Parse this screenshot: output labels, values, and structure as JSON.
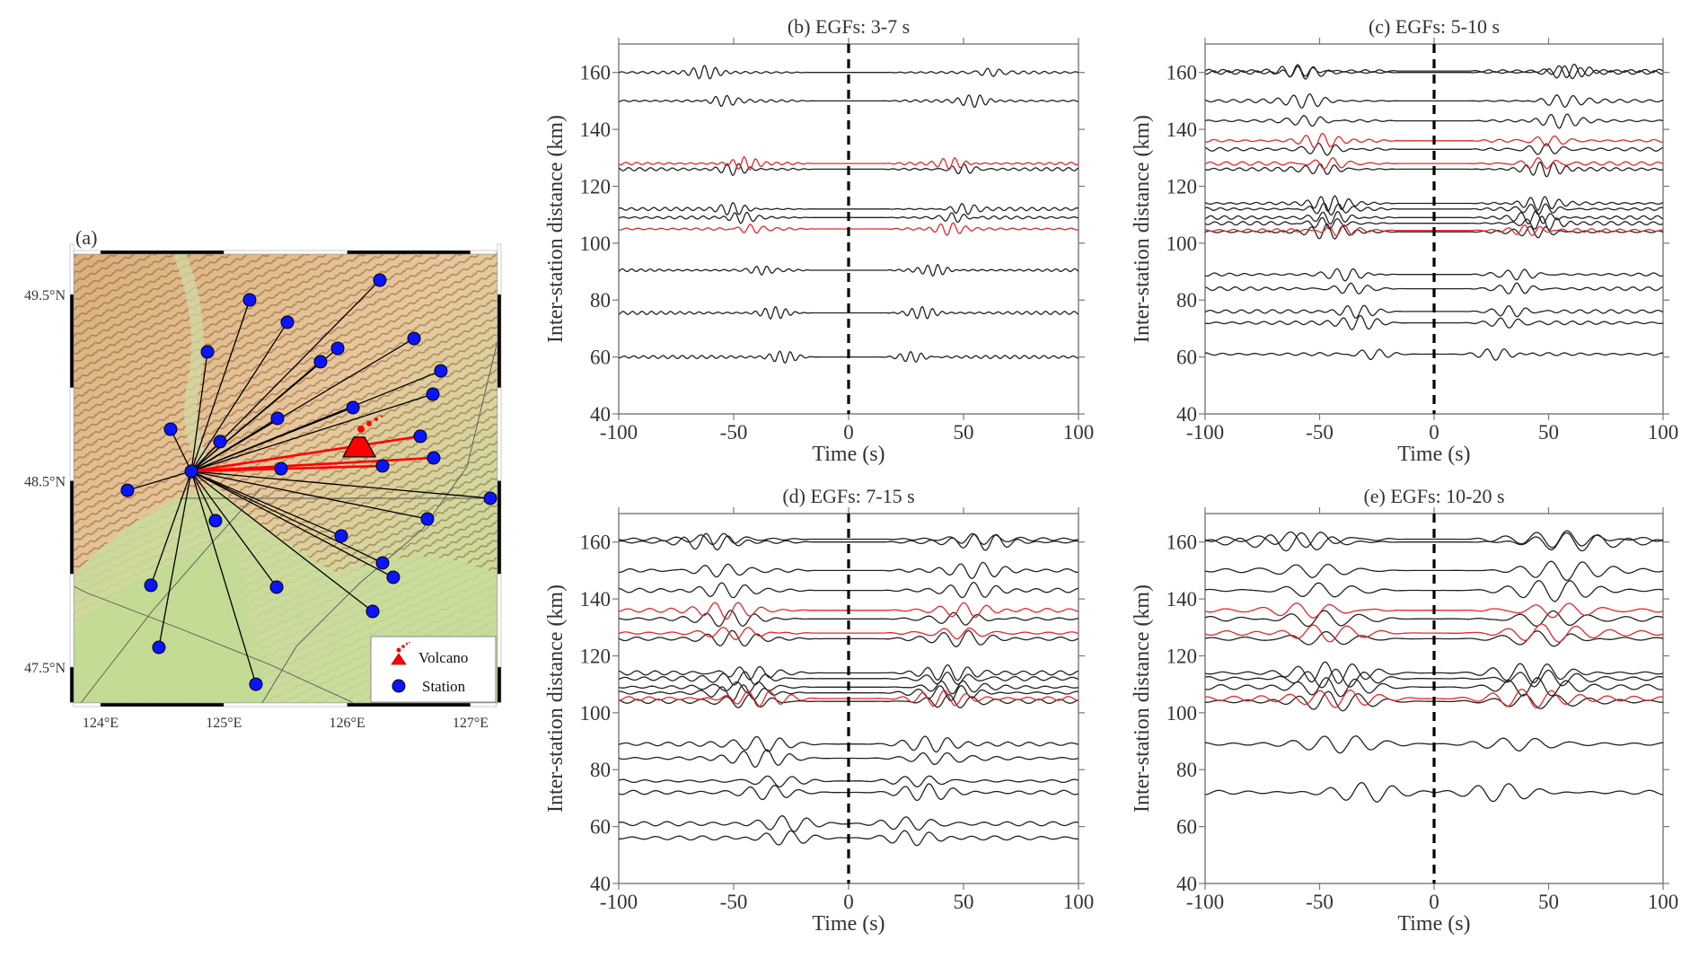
{
  "map": {
    "label": "(a)",
    "lon_range": [
      123.78,
      127.21
    ],
    "lat_range": [
      47.31,
      49.77
    ],
    "lon_ticks": [
      {
        "value": 124,
        "label": "124°E"
      },
      {
        "value": 125,
        "label": "125°E"
      },
      {
        "value": 126,
        "label": "126°E"
      },
      {
        "value": 127,
        "label": "127°E"
      }
    ],
    "lat_ticks": [
      {
        "value": 49.5,
        "label": "49.5°N"
      },
      {
        "value": 48.5,
        "label": "48.5°N"
      },
      {
        "value": 47.5,
        "label": "47.5°N"
      }
    ],
    "hub_station": {
      "lon": 124.736,
      "lat": 48.551
    },
    "volcano": {
      "lon": 126.098,
      "lat": 48.686
    },
    "stations": [
      {
        "lon": 126.265,
        "lat": 49.577,
        "path_color": "black"
      },
      {
        "lon": 125.209,
        "lat": 49.471,
        "path_color": "black"
      },
      {
        "lon": 125.515,
        "lat": 49.351,
        "path_color": "black"
      },
      {
        "lon": 124.867,
        "lat": 49.192,
        "path_color": "black"
      },
      {
        "lon": 126.542,
        "lat": 49.264,
        "path_color": "black"
      },
      {
        "lon": 125.923,
        "lat": 49.211,
        "path_color": "black"
      },
      {
        "lon": 125.784,
        "lat": 49.139,
        "path_color": "black"
      },
      {
        "lon": 126.76,
        "lat": 49.09,
        "path_color": "black"
      },
      {
        "lon": 126.695,
        "lat": 48.965,
        "path_color": "black"
      },
      {
        "lon": 126.047,
        "lat": 48.893,
        "path_color": "black"
      },
      {
        "lon": 125.435,
        "lat": 48.835,
        "path_color": "black"
      },
      {
        "lon": 124.568,
        "lat": 48.777,
        "path_color": "black"
      },
      {
        "lon": 124.969,
        "lat": 48.71,
        "path_color": "black"
      },
      {
        "lon": 126.593,
        "lat": 48.739,
        "path_color": "red"
      },
      {
        "lon": 126.702,
        "lat": 48.623,
        "path_color": "red"
      },
      {
        "lon": 125.464,
        "lat": 48.565,
        "path_color": "red"
      },
      {
        "lon": 126.287,
        "lat": 48.58,
        "path_color": "red"
      },
      {
        "lon": 124.218,
        "lat": 48.449,
        "path_color": "black"
      },
      {
        "lon": 127.161,
        "lat": 48.406,
        "path_color": "black"
      },
      {
        "lon": 124.932,
        "lat": 48.286,
        "path_color": "black"
      },
      {
        "lon": 126.651,
        "lat": 48.295,
        "path_color": "black"
      },
      {
        "lon": 125.952,
        "lat": 48.204,
        "path_color": "black"
      },
      {
        "lon": 126.287,
        "lat": 48.059,
        "path_color": "black"
      },
      {
        "lon": 126.374,
        "lat": 47.982,
        "path_color": "black"
      },
      {
        "lon": 124.408,
        "lat": 47.939,
        "path_color": "black"
      },
      {
        "lon": 125.428,
        "lat": 47.929,
        "path_color": "black"
      },
      {
        "lon": 126.207,
        "lat": 47.799,
        "path_color": "black"
      },
      {
        "lon": 124.473,
        "lat": 47.606,
        "path_color": "black"
      },
      {
        "lon": 125.26,
        "lat": 47.408,
        "path_color": "black"
      }
    ],
    "legend": {
      "volcano_label": "Volcano",
      "station_label": "Station"
    },
    "colors": {
      "station": "#0a14ff",
      "volcano": "#ff0000",
      "path_black": "#000000",
      "path_red": "#ff0000"
    }
  },
  "chart_data": [
    {
      "type": "line",
      "id": "b",
      "title": "(b)  EGFs: 3-7 s",
      "xlabel": "Time (s)",
      "ylabel": "Inter-station distance (km)",
      "xlim": [
        -100,
        100
      ],
      "ylim": [
        40,
        170
      ],
      "xticks": [
        -100,
        -50,
        0,
        50,
        100
      ],
      "yticks": [
        40,
        60,
        80,
        100,
        120,
        140,
        160
      ],
      "zero_line": "dashed",
      "period_s": 5,
      "series": [
        {
          "distance_km": 160,
          "color": "black",
          "arrival_s": 62
        },
        {
          "distance_km": 150,
          "color": "black",
          "arrival_s": 55
        },
        {
          "distance_km": 128,
          "color": "red",
          "arrival_s": 45
        },
        {
          "distance_km": 126,
          "color": "black",
          "arrival_s": 50
        },
        {
          "distance_km": 112,
          "color": "black",
          "arrival_s": 50
        },
        {
          "distance_km": 109,
          "color": "black",
          "arrival_s": 47
        },
        {
          "distance_km": 105,
          "color": "red",
          "arrival_s": 43
        },
        {
          "distance_km": 90.5,
          "color": "black",
          "arrival_s": 38
        },
        {
          "distance_km": 75.5,
          "color": "black",
          "arrival_s": 32
        },
        {
          "distance_km": 60,
          "color": "black",
          "arrival_s": 28
        }
      ]
    },
    {
      "type": "line",
      "id": "c",
      "title": "(c)  EGFs: 5-10 s",
      "xlabel": "Time (s)",
      "ylabel": "Inter-station distance (km)",
      "xlim": [
        -100,
        100
      ],
      "ylim": [
        40,
        170
      ],
      "xticks": [
        -100,
        -50,
        0,
        50,
        100
      ],
      "yticks": [
        40,
        60,
        80,
        100,
        120,
        140,
        160
      ],
      "zero_line": "dashed",
      "period_s": 7,
      "series": [
        {
          "distance_km": 160.5,
          "color": "black",
          "arrival_s": 60
        },
        {
          "distance_km": 160,
          "color": "black",
          "arrival_s": 57
        },
        {
          "distance_km": 150,
          "color": "black",
          "arrival_s": 55
        },
        {
          "distance_km": 143,
          "color": "black",
          "arrival_s": 54
        },
        {
          "distance_km": 136,
          "color": "red",
          "arrival_s": 50
        },
        {
          "distance_km": 133,
          "color": "black",
          "arrival_s": 48
        },
        {
          "distance_km": 128,
          "color": "red",
          "arrival_s": 46
        },
        {
          "distance_km": 126,
          "color": "black",
          "arrival_s": 48
        },
        {
          "distance_km": 114,
          "color": "black",
          "arrival_s": 45
        },
        {
          "distance_km": 112,
          "color": "black",
          "arrival_s": 47
        },
        {
          "distance_km": 109,
          "color": "black",
          "arrival_s": 44
        },
        {
          "distance_km": 107,
          "color": "black",
          "arrival_s": 48
        },
        {
          "distance_km": 104.5,
          "color": "red",
          "arrival_s": 42
        },
        {
          "distance_km": 104,
          "color": "black",
          "arrival_s": 46
        },
        {
          "distance_km": 89,
          "color": "black",
          "arrival_s": 38
        },
        {
          "distance_km": 84,
          "color": "black",
          "arrival_s": 36
        },
        {
          "distance_km": 76,
          "color": "black",
          "arrival_s": 34
        },
        {
          "distance_km": 72,
          "color": "black",
          "arrival_s": 32
        },
        {
          "distance_km": 61,
          "color": "black",
          "arrival_s": 28
        }
      ]
    },
    {
      "type": "line",
      "id": "d",
      "title": "(d)  EGFs: 7-15 s",
      "xlabel": "Time (s)",
      "ylabel": "Inter-station distance (km)",
      "xlim": [
        -100,
        100
      ],
      "ylim": [
        40,
        170
      ],
      "xticks": [
        -100,
        -50,
        0,
        50,
        100
      ],
      "yticks": [
        40,
        60,
        80,
        100,
        120,
        140,
        160
      ],
      "zero_line": "dashed",
      "period_s": 10,
      "series": [
        {
          "distance_km": 161,
          "color": "black",
          "arrival_s": 57
        },
        {
          "distance_km": 160,
          "color": "black",
          "arrival_s": 60
        },
        {
          "distance_km": 150,
          "color": "black",
          "arrival_s": 56
        },
        {
          "distance_km": 143,
          "color": "black",
          "arrival_s": 54
        },
        {
          "distance_km": 136,
          "color": "red",
          "arrival_s": 52
        },
        {
          "distance_km": 133,
          "color": "black",
          "arrival_s": 50
        },
        {
          "distance_km": 128,
          "color": "red",
          "arrival_s": 48
        },
        {
          "distance_km": 126,
          "color": "black",
          "arrival_s": 50
        },
        {
          "distance_km": 114,
          "color": "black",
          "arrival_s": 43
        },
        {
          "distance_km": 112,
          "color": "black",
          "arrival_s": 45
        },
        {
          "distance_km": 109,
          "color": "black",
          "arrival_s": 44
        },
        {
          "distance_km": 107,
          "color": "black",
          "arrival_s": 46
        },
        {
          "distance_km": 105,
          "color": "red",
          "arrival_s": 40
        },
        {
          "distance_km": 104,
          "color": "black",
          "arrival_s": 44
        },
        {
          "distance_km": 89,
          "color": "black",
          "arrival_s": 36
        },
        {
          "distance_km": 84,
          "color": "black",
          "arrival_s": 37
        },
        {
          "distance_km": 76,
          "color": "black",
          "arrival_s": 32
        },
        {
          "distance_km": 72,
          "color": "black",
          "arrival_s": 34
        },
        {
          "distance_km": 61,
          "color": "black",
          "arrival_s": 26
        },
        {
          "distance_km": 56,
          "color": "black",
          "arrival_s": 28
        }
      ]
    },
    {
      "type": "line",
      "id": "e",
      "title": "(e)  EGFs: 10-20 s",
      "xlabel": "Time (s)",
      "ylabel": "Inter-station distance (km)",
      "xlim": [
        -100,
        100
      ],
      "ylim": [
        40,
        170
      ],
      "xticks": [
        -100,
        -50,
        0,
        50,
        100
      ],
      "yticks": [
        40,
        60,
        80,
        100,
        120,
        140,
        160
      ],
      "zero_line": "dashed",
      "period_s": 14,
      "series": [
        {
          "distance_km": 161,
          "color": "black",
          "arrival_s": 56
        },
        {
          "distance_km": 160,
          "color": "black",
          "arrival_s": 58
        },
        {
          "distance_km": 150,
          "color": "black",
          "arrival_s": 54
        },
        {
          "distance_km": 143,
          "color": "black",
          "arrival_s": 52
        },
        {
          "distance_km": 136,
          "color": "red",
          "arrival_s": 54
        },
        {
          "distance_km": 133,
          "color": "black",
          "arrival_s": 50
        },
        {
          "distance_km": 128,
          "color": "red",
          "arrival_s": 48
        },
        {
          "distance_km": 126,
          "color": "black",
          "arrival_s": 50
        },
        {
          "distance_km": 114,
          "color": "black",
          "arrival_s": 44
        },
        {
          "distance_km": 112,
          "color": "black",
          "arrival_s": 46
        },
        {
          "distance_km": 109,
          "color": "black",
          "arrival_s": 44
        },
        {
          "distance_km": 105,
          "color": "red",
          "arrival_s": 40
        },
        {
          "distance_km": 104,
          "color": "black",
          "arrival_s": 44
        },
        {
          "distance_km": 89,
          "color": "black",
          "arrival_s": 38
        },
        {
          "distance_km": 72,
          "color": "black",
          "arrival_s": 30
        }
      ]
    }
  ],
  "colors": {
    "trace_black": "#222222",
    "trace_red": "#e8252b",
    "axis": "#777777"
  }
}
